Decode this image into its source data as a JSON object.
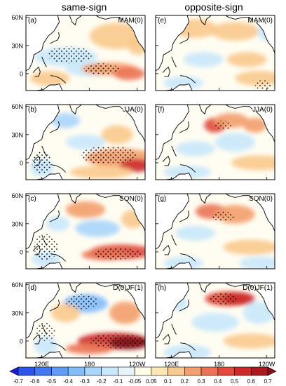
{
  "headers": {
    "left": "same-sign",
    "right": "opposite-sign"
  },
  "panels": [
    {
      "id": "(a)",
      "season": "MAM(0)",
      "column": "same-sign"
    },
    {
      "id": "(e)",
      "season": "MAM(0)",
      "column": "opposite-sign"
    },
    {
      "id": "(b)",
      "season": "JJA(0)",
      "column": "same-sign"
    },
    {
      "id": "(f)",
      "season": "JJA(0)",
      "column": "opposite-sign"
    },
    {
      "id": "(c)",
      "season": "SON(0)",
      "column": "same-sign"
    },
    {
      "id": "(g)",
      "season": "SON(0)",
      "column": "opposite-sign"
    },
    {
      "id": "(d)",
      "season": "D(0)JF(1)",
      "column": "same-sign"
    },
    {
      "id": "(h)",
      "season": "D(0)JF(1)",
      "column": "opposite-sign"
    }
  ],
  "lat_labels": [
    "60N",
    "30N",
    "0"
  ],
  "lon_labels": [
    "120E",
    "180",
    "120W"
  ],
  "colorbar": {
    "levels": [
      "-0.7",
      "-0.6",
      "-0.5",
      "-0.4",
      "-0.3",
      "-0.2",
      "-0.1",
      "-0.05",
      "0.05",
      "0.1",
      "0.2",
      "0.3",
      "0.4",
      "0.5",
      "0.6",
      "0.7"
    ],
    "colors": [
      "#1c1cd6",
      "#2e54e6",
      "#3f79f0",
      "#5f9cf5",
      "#84bdf9",
      "#a9d6fb",
      "#c9e8fb",
      "#e6f5fb",
      "#fffde6",
      "#fde8b3",
      "#f9c98d",
      "#f3a06d",
      "#ea7354",
      "#df4a3a",
      "#cb2b2b",
      "#a81a1f",
      "#85111a"
    ]
  }
}
